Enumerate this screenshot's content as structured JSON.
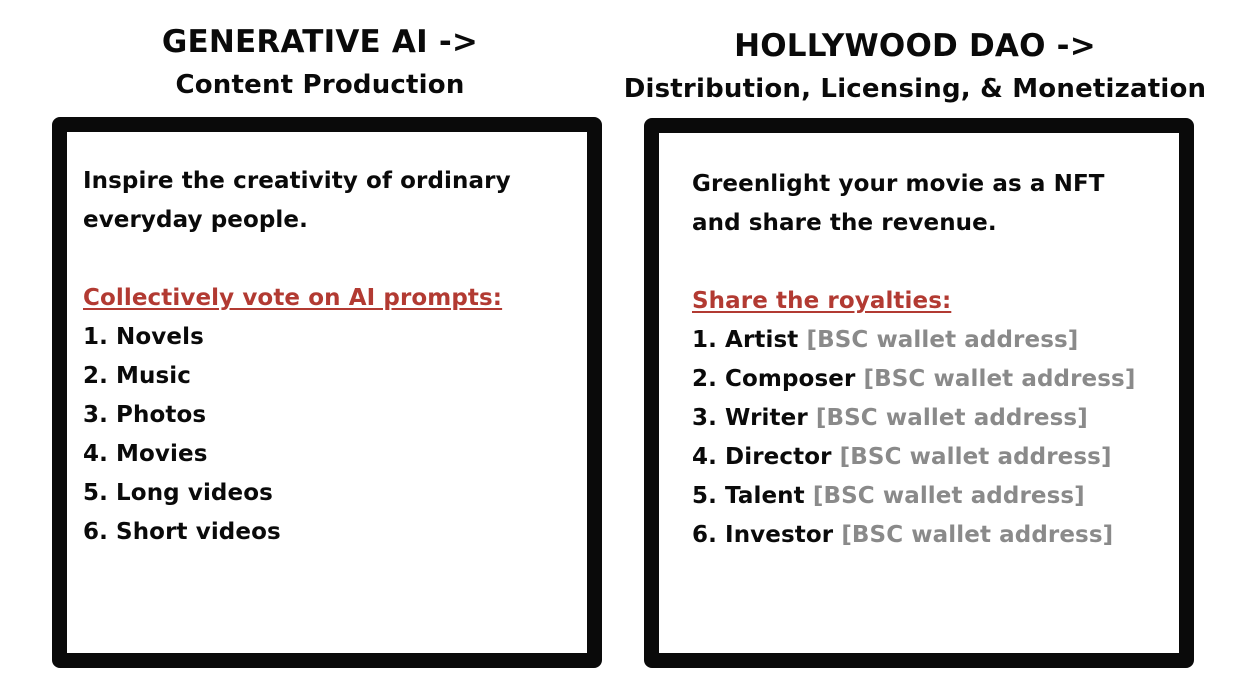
{
  "left": {
    "title": "GENERATIVE AI ->",
    "subtitle": "Content Production",
    "intro_line1": "Inspire the creativity of ordinary",
    "intro_line2": "everyday people.",
    "section_title": "Collectively vote on AI prompts:",
    "items": [
      "1. Novels",
      "2. Music",
      "3. Photos",
      "4. Movies",
      "5. Long videos",
      "6. Short videos"
    ]
  },
  "right": {
    "title": "HOLLYWOOD DAO ->",
    "subtitle": "Distribution, Licensing, & Monetization",
    "intro_line1": "Greenlight your movie as a NFT",
    "intro_line2": "and share the revenue.",
    "section_title": "Share the royalties:",
    "items": [
      {
        "role": "1. Artist",
        "wallet": "[BSC wallet address]"
      },
      {
        "role": "2. Composer",
        "wallet": "[BSC wallet address]"
      },
      {
        "role": "3. Writer",
        "wallet": "[BSC wallet address]"
      },
      {
        "role": "4. Director",
        "wallet": "[BSC wallet address]"
      },
      {
        "role": "5. Talent",
        "wallet": "[BSC wallet address]"
      },
      {
        "role": "6. Investor",
        "wallet": "[BSC wallet address]"
      }
    ]
  },
  "colors": {
    "accent_red": "#b23a32",
    "wallet_gray": "#8a8a8a",
    "border_black": "#0a0a0a"
  }
}
